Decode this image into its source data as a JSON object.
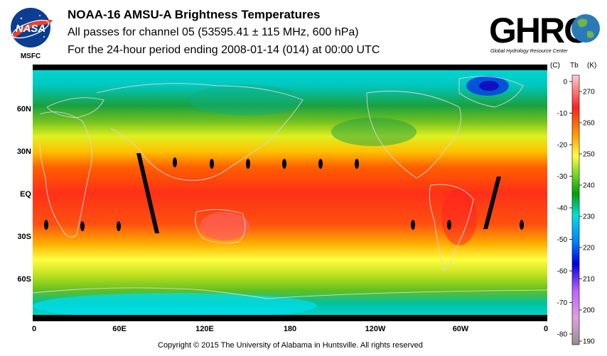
{
  "header": {
    "title": "NOAA-16 AMSU-A Brightness Temperatures",
    "subtitle": "All passes for channel 05 (53595.41 ± 115 MHz, 600 hPa)",
    "period": "For the 24-hour period ending 2008-01-14 (014) at 00:00 UTC"
  },
  "logos": {
    "nasa_text": "NASA",
    "nasa_sub": "MSFC",
    "ghrc_text": "GHRC",
    "ghrc_sub": "Global Hydrology Resource Center"
  },
  "map": {
    "lat_labels": [
      "60N",
      "30N",
      "EQ",
      "30S",
      "60S"
    ],
    "lon_labels": [
      "0",
      "60E",
      "120E",
      "180",
      "120W",
      "60W",
      "0"
    ]
  },
  "colorbar": {
    "celsius_unit": "(C)",
    "tb_label": "Tb",
    "kelvin_unit": "(K)",
    "celsius_ticks": [
      "0",
      "-10",
      "-20",
      "-30",
      "-40",
      "-50",
      "-60",
      "-70",
      "-80"
    ],
    "kelvin_ticks": [
      "270",
      "260",
      "250",
      "240",
      "230",
      "220",
      "210",
      "200",
      "190"
    ],
    "colors": [
      "#ffc8c8",
      "#ff2020",
      "#ff9a00",
      "#ffff40",
      "#00a000",
      "#00e0e0",
      "#0040ff",
      "#e080ff",
      "#a0a0a0"
    ]
  },
  "footer": {
    "copyright": "Copyright © 2015 The University of Alabama in Huntsville.  All rights reserved"
  }
}
